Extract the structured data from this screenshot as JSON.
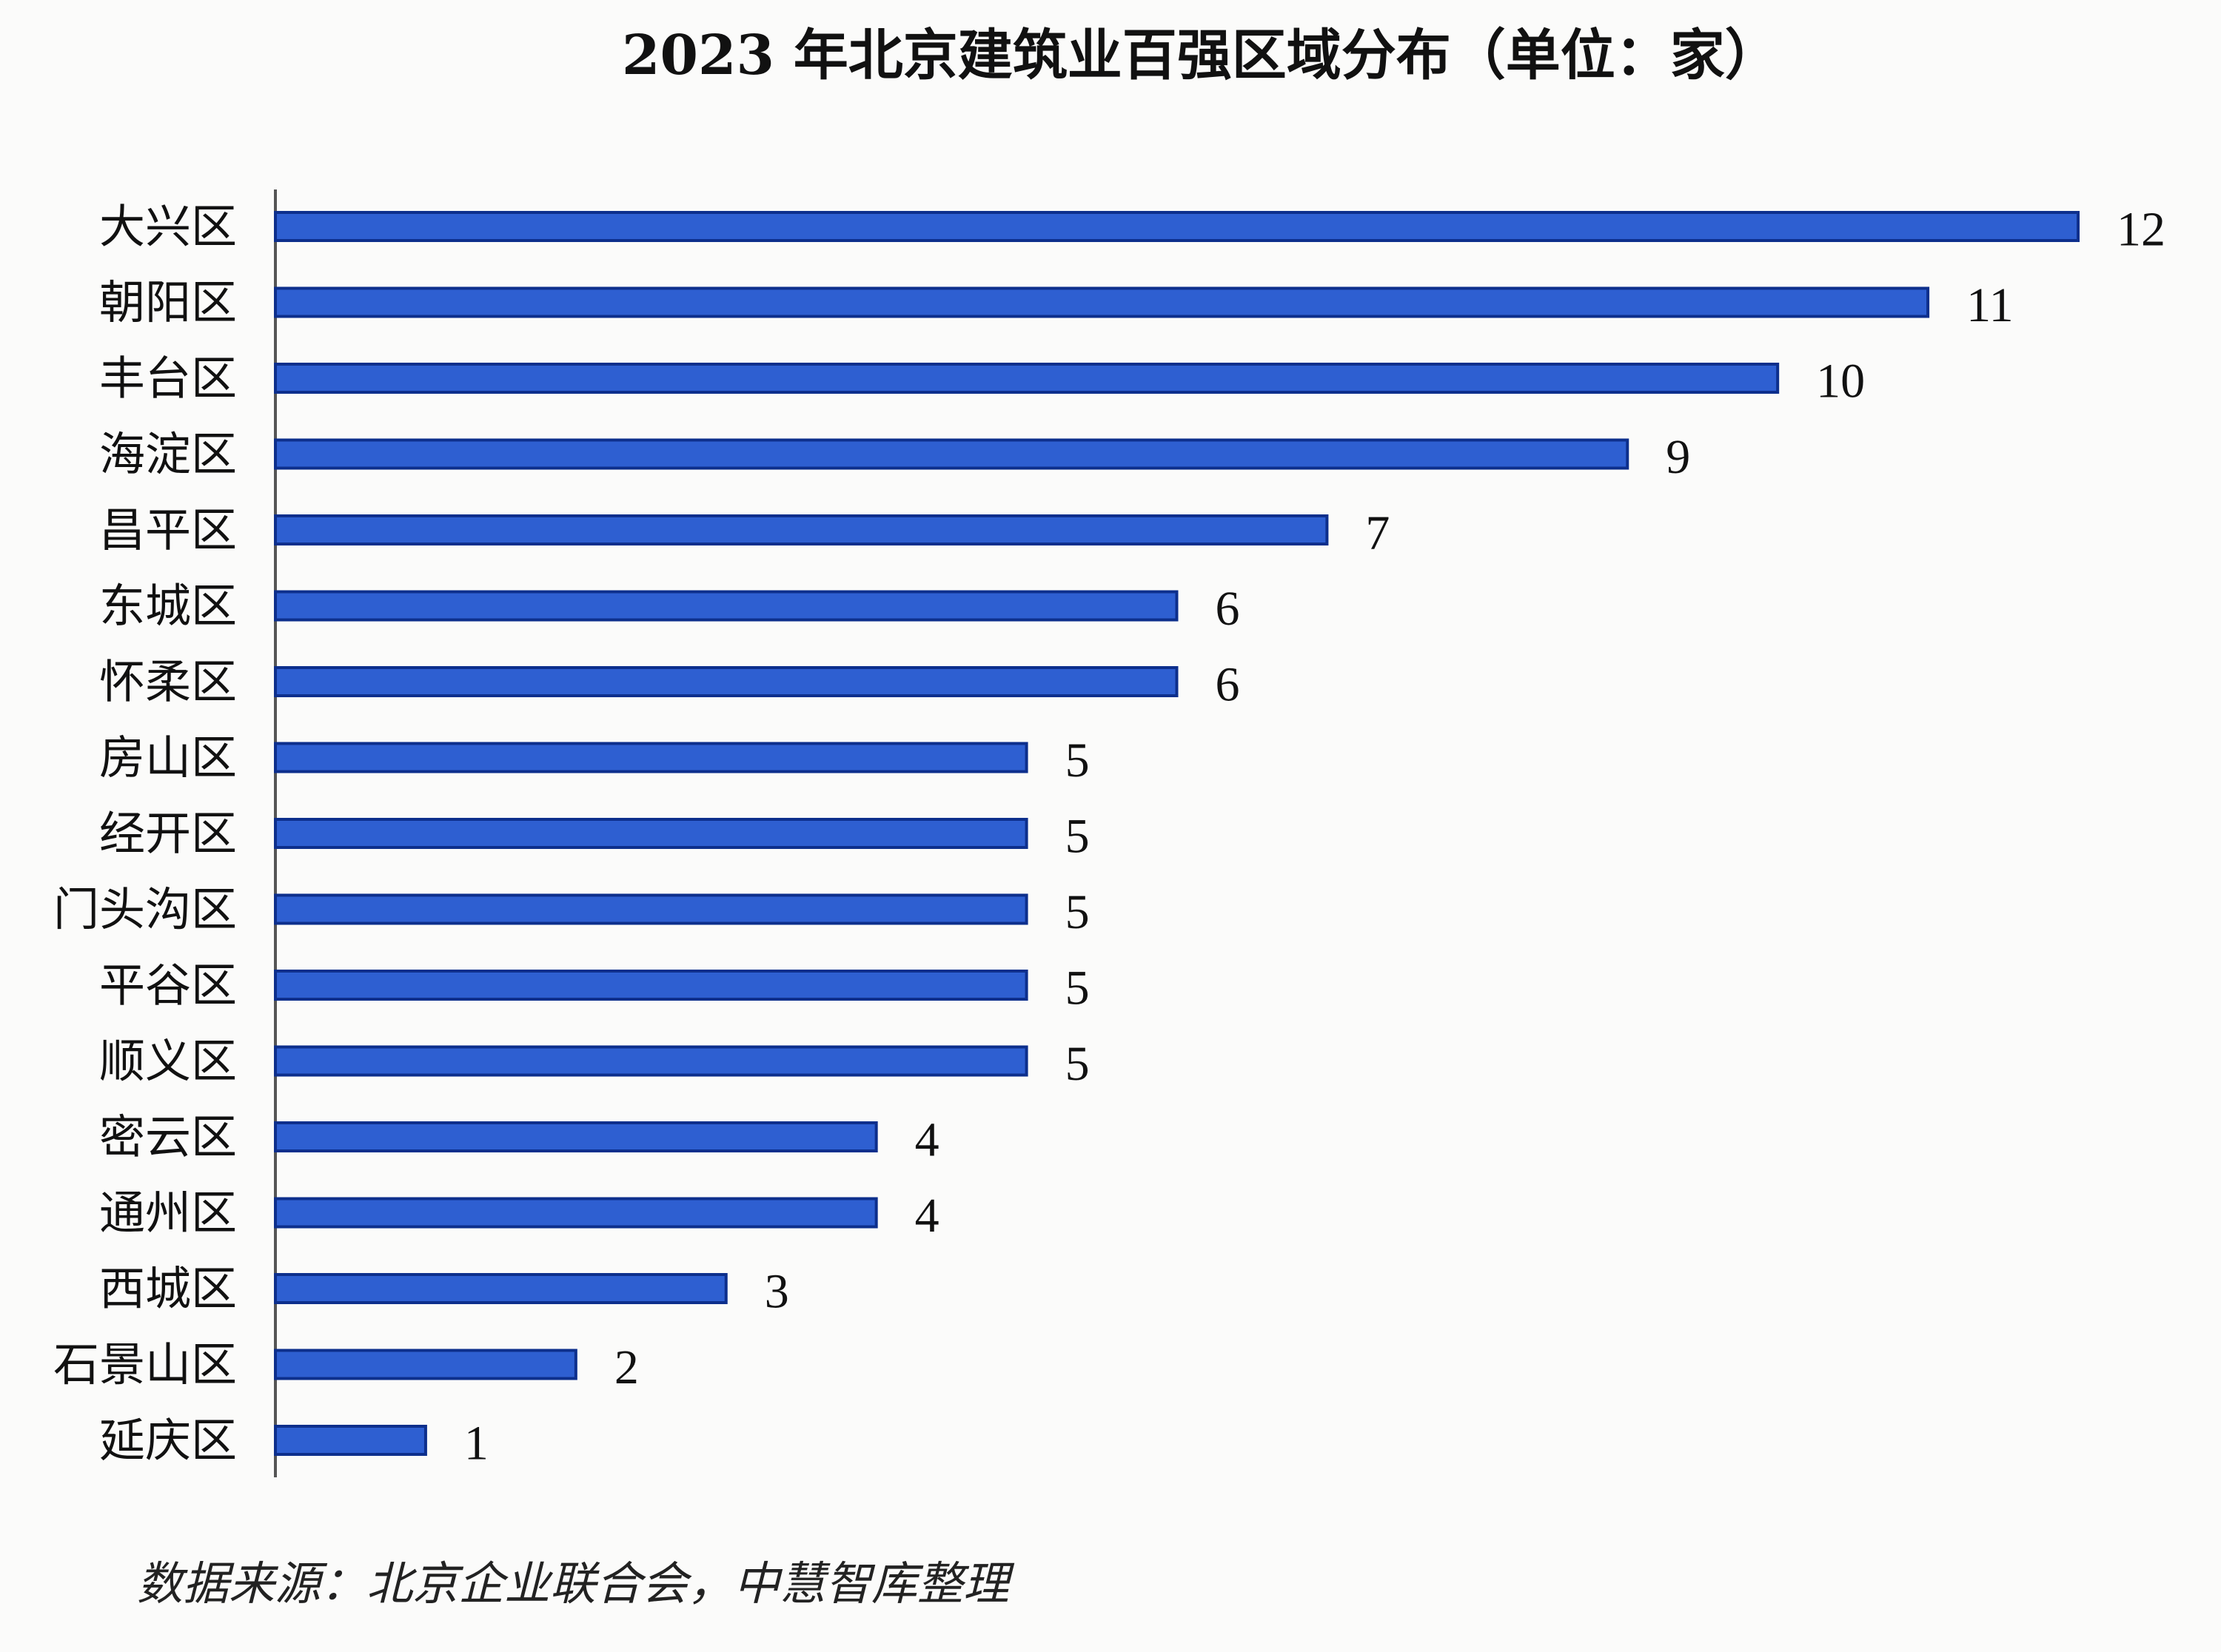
{
  "chart_data": {
    "type": "bar",
    "orientation": "horizontal",
    "title": "2023 年北京建筑业百强区域分布（单位：家）",
    "categories": [
      "大兴区",
      "朝阳区",
      "丰台区",
      "海淀区",
      "昌平区",
      "东城区",
      "怀柔区",
      "房山区",
      "经开区",
      "门头沟区",
      "平谷区",
      "顺义区",
      "密云区",
      "通州区",
      "西城区",
      "石景山区",
      "延庆区"
    ],
    "values": [
      12,
      11,
      10,
      9,
      7,
      6,
      6,
      5,
      5,
      5,
      5,
      5,
      4,
      4,
      3,
      2,
      1
    ],
    "xlabel": "",
    "ylabel": "",
    "xlim": [
      0,
      12
    ],
    "grid": false,
    "legend": "none",
    "bar_color": "#2e5fd1",
    "bar_edge_color": "#0d2f8c"
  },
  "source_note": "数据来源：北京企业联合会，中慧智库整理"
}
